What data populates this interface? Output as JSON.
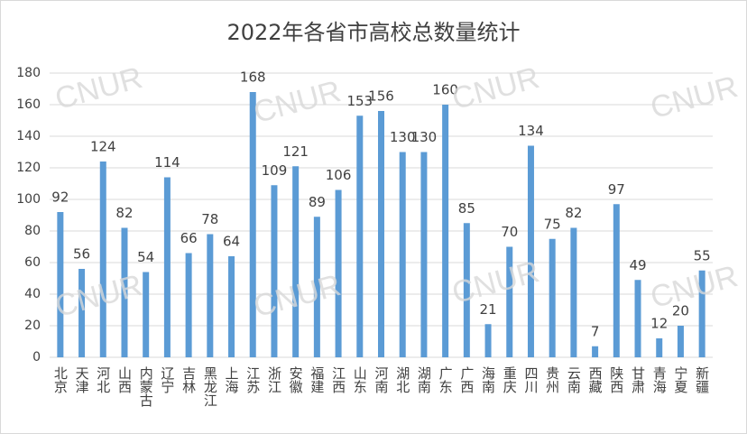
{
  "chart_data": {
    "type": "bar",
    "title": "2022年各省市高校总数量统计",
    "watermark": "CNUR",
    "categories": [
      "北京",
      "天津",
      "河北",
      "山西",
      "内蒙古",
      "辽宁",
      "吉林",
      "黑龙江",
      "上海",
      "江苏",
      "浙江",
      "安徽",
      "福建",
      "江西",
      "山东",
      "河南",
      "湖北",
      "湖南",
      "广东",
      "广西",
      "海南",
      "重庆",
      "四川",
      "贵州",
      "云南",
      "西藏",
      "陕西",
      "甘肃",
      "青海",
      "宁夏",
      "新疆"
    ],
    "values": [
      92,
      56,
      124,
      82,
      54,
      114,
      66,
      78,
      64,
      168,
      109,
      121,
      89,
      106,
      153,
      156,
      130,
      130,
      160,
      85,
      21,
      70,
      134,
      75,
      82,
      7,
      97,
      49,
      12,
      20,
      55
    ],
    "color": "#5b9bd5",
    "ylim": [
      0,
      180
    ],
    "yticks": [
      0,
      20,
      40,
      60,
      80,
      100,
      120,
      140,
      160,
      180
    ],
    "grid": true
  }
}
